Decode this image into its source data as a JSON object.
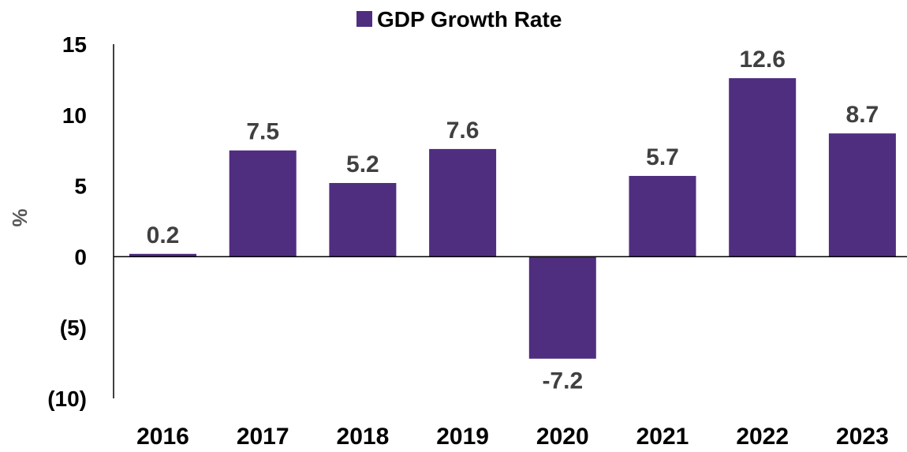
{
  "chart_data": {
    "type": "bar",
    "categories": [
      "2016",
      "2017",
      "2018",
      "2019",
      "2020",
      "2021",
      "2022",
      "2023"
    ],
    "series": [
      {
        "name": "GDP Growth Rate",
        "values": [
          0.2,
          7.5,
          5.2,
          7.6,
          -7.2,
          5.7,
          12.6,
          8.7
        ]
      }
    ],
    "data_labels": [
      "0.2",
      "7.5",
      "5.2",
      "7.6",
      "-7.2",
      "5.7",
      "12.6",
      "8.7"
    ],
    "ylabel": "%",
    "ylim": [
      -10,
      15
    ],
    "yticks": [
      15,
      10,
      5,
      0,
      -5,
      -10
    ],
    "ytick_labels": [
      "15",
      "10",
      "5",
      "0",
      "(5)",
      "(10)"
    ],
    "legend_position": "top-center",
    "grid": false,
    "bar_color": "#4f2d7f"
  }
}
